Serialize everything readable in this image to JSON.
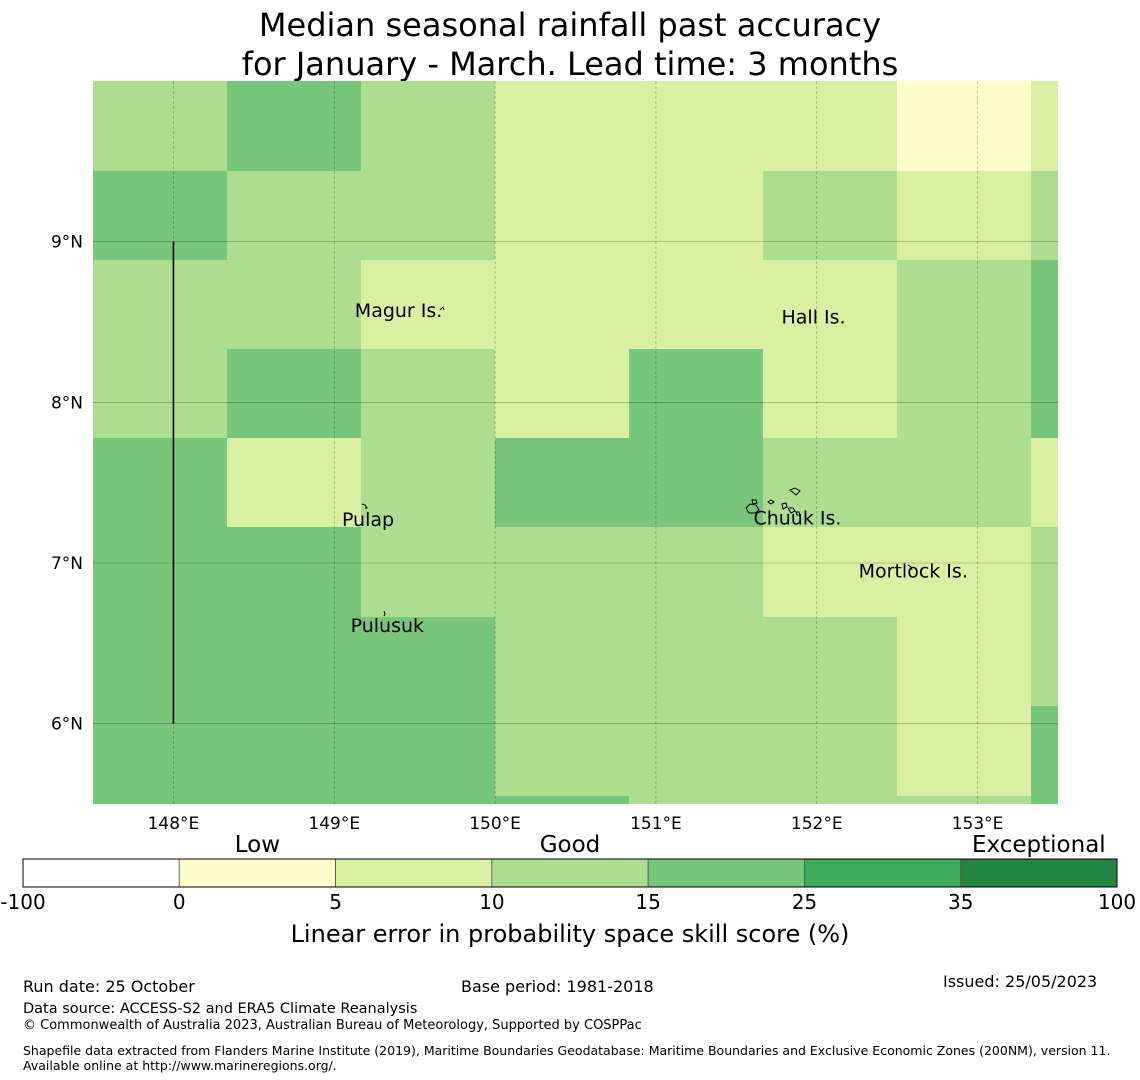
{
  "title": {
    "line1": "Median seasonal rainfall past accuracy",
    "line2": "for January - March. Lead time: 3 months"
  },
  "map": {
    "lon_range": [
      147.5,
      153.5
    ],
    "lat_range": [
      5.5,
      10.0
    ],
    "lon_ticks": [
      {
        "value": 148,
        "label": "148°E"
      },
      {
        "value": 149,
        "label": "149°E"
      },
      {
        "value": 150,
        "label": "150°E"
      },
      {
        "value": 151,
        "label": "151°E"
      },
      {
        "value": 152,
        "label": "152°E"
      },
      {
        "value": 153,
        "label": "153°E"
      }
    ],
    "lat_ticks": [
      {
        "value": 9,
        "label": "9°N"
      },
      {
        "value": 8,
        "label": "8°N"
      },
      {
        "value": 7,
        "label": "7°N"
      },
      {
        "value": 6,
        "label": "6°N"
      }
    ],
    "cell_colors": {
      "1": "#ffffcc",
      "2": "#d9f0a3",
      "3": "#addd8e",
      "4": "#78c679",
      "5": "#41ab5d",
      "6": "#238443"
    },
    "grid_rows_top_to_bottom": [
      [
        3,
        4,
        3,
        2,
        2,
        2,
        1,
        2
      ],
      [
        4,
        3,
        3,
        2,
        2,
        3,
        2,
        3
      ],
      [
        3,
        3,
        2,
        2,
        2,
        2,
        3,
        4
      ],
      [
        3,
        4,
        3,
        2,
        4,
        2,
        3,
        4
      ],
      [
        4,
        2,
        3,
        4,
        4,
        3,
        3,
        2
      ],
      [
        4,
        4,
        3,
        3,
        3,
        2,
        2,
        3
      ],
      [
        4,
        4,
        4,
        3,
        3,
        3,
        2,
        3
      ],
      [
        4,
        4,
        4,
        3,
        3,
        3,
        2,
        4
      ]
    ],
    "eez_line": {
      "lon": 148.0,
      "lat_from": 6.0,
      "lat_to": 9.0
    },
    "islands": [
      {
        "name": "Magur Is.",
        "lon": 149.4,
        "lat": 8.53
      },
      {
        "name": "Hall Is.",
        "lon": 151.98,
        "lat": 8.49
      },
      {
        "name": "Pulap",
        "lon": 149.21,
        "lat": 7.23
      },
      {
        "name": "Chuuk Is.",
        "lon": 151.88,
        "lat": 7.24
      },
      {
        "name": "Mortlock Is.",
        "lon": 152.6,
        "lat": 6.91
      },
      {
        "name": "Pulusuk",
        "lon": 149.33,
        "lat": 6.57
      }
    ]
  },
  "colorbar": {
    "categories": [
      {
        "label": "Low",
        "position": 1.5
      },
      {
        "label": "Good",
        "position": 3.5
      },
      {
        "label": "Exceptional",
        "position": 6.5
      }
    ],
    "bins": [
      {
        "from": -100,
        "to": 0,
        "color": "#ffffff"
      },
      {
        "from": 0,
        "to": 5,
        "color": "#ffffcc"
      },
      {
        "from": 5,
        "to": 10,
        "color": "#d9f0a3"
      },
      {
        "from": 10,
        "to": 15,
        "color": "#addd8e"
      },
      {
        "from": 15,
        "to": 25,
        "color": "#78c679"
      },
      {
        "from": 25,
        "to": 35,
        "color": "#41ab5d"
      },
      {
        "from": 35,
        "to": 100,
        "color": "#238443"
      }
    ],
    "tick_labels": [
      "-100",
      "0",
      "5",
      "10",
      "15",
      "25",
      "35",
      "100"
    ],
    "label": "Linear error in probability space skill score (%)"
  },
  "footer": {
    "run_date": "Run date: 25 October",
    "base_period": "Base period: 1981-2018",
    "issued": "Issued: 25/05/2023",
    "data_source": "Data source: ACCESS-S2 and ERA5 Climate Reanalysis",
    "copyright": "© Commonwealth of Australia 2023, Australian Bureau of Meteorology, Supported by COSPPac",
    "shapefile": "Shapefile data extracted from Flanders Marine Institute (2019), Maritime Boundaries Geodatabase: Maritime Boundaries and Exclusive Economic Zones (200NM), version 11. Available online at http://www.marineregions.org/."
  }
}
